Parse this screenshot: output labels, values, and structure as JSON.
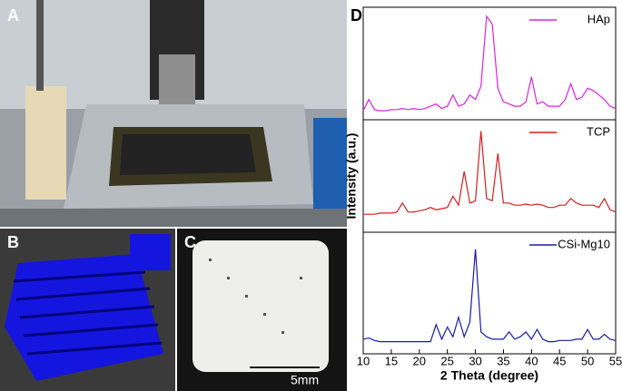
{
  "panel_labels": [
    "A",
    "B",
    "C",
    "D"
  ],
  "scale_bar": "5mm",
  "chart_data": [
    {
      "type": "line",
      "xlim": [
        10,
        55
      ],
      "ylim": [
        0,
        100
      ],
      "legend": "upper right",
      "x": [
        10,
        11,
        12,
        13,
        14,
        15,
        16,
        17,
        18,
        19,
        20,
        21,
        22,
        23,
        24,
        25,
        26,
        27,
        28,
        29,
        30,
        31,
        32,
        33,
        34,
        35,
        36,
        37,
        38,
        39,
        40,
        41,
        42,
        43,
        44,
        45,
        46,
        47,
        48,
        49,
        50,
        51,
        52,
        53,
        54,
        55
      ],
      "series": [
        {
          "name": "HAp",
          "color": "#dd22dd",
          "values": [
            8,
            18,
            9,
            8,
            8,
            9,
            9,
            10,
            9,
            10,
            9,
            10,
            12,
            14,
            10,
            12,
            22,
            12,
            14,
            22,
            18,
            30,
            92,
            85,
            28,
            16,
            14,
            12,
            12,
            16,
            38,
            14,
            16,
            12,
            12,
            12,
            18,
            32,
            18,
            20,
            28,
            26,
            22,
            18,
            12,
            10
          ]
        }
      ]
    },
    {
      "type": "line",
      "xlim": [
        10,
        55
      ],
      "ylim": [
        0,
        100
      ],
      "legend": "upper right",
      "ylabel": "Intensity (a.u.)",
      "x": [
        10,
        11,
        12,
        13,
        14,
        15,
        16,
        17,
        18,
        19,
        20,
        21,
        22,
        23,
        24,
        25,
        26,
        27,
        28,
        29,
        30,
        31,
        32,
        33,
        34,
        35,
        36,
        37,
        38,
        39,
        40,
        41,
        42,
        43,
        44,
        45,
        46,
        47,
        48,
        49,
        50,
        51,
        52,
        53,
        54,
        55
      ],
      "series": [
        {
          "name": "TCP",
          "color": "#d42020",
          "values": [
            16,
            16,
            16,
            17,
            17,
            17,
            18,
            26,
            18,
            18,
            19,
            20,
            22,
            20,
            21,
            22,
            32,
            24,
            54,
            26,
            28,
            90,
            30,
            28,
            70,
            26,
            26,
            24,
            24,
            25,
            24,
            25,
            24,
            22,
            22,
            24,
            24,
            30,
            26,
            24,
            24,
            24,
            22,
            30,
            20,
            18
          ]
        }
      ]
    },
    {
      "type": "line",
      "xlim": [
        10,
        55
      ],
      "ylim": [
        0,
        100
      ],
      "legend": "upper right",
      "xlabel": "2 Theta (degree)",
      "xticks": [
        10,
        15,
        20,
        25,
        30,
        35,
        40,
        45,
        50,
        55
      ],
      "x": [
        10,
        11,
        12,
        13,
        14,
        15,
        16,
        17,
        18,
        19,
        20,
        21,
        22,
        23,
        24,
        25,
        26,
        27,
        28,
        29,
        30,
        31,
        32,
        33,
        34,
        35,
        36,
        37,
        38,
        39,
        40,
        41,
        42,
        43,
        44,
        45,
        46,
        47,
        48,
        49,
        50,
        51,
        52,
        53,
        54,
        55
      ],
      "series": [
        {
          "name": "CSi-Mg10",
          "color": "#1a1aa8",
          "values": [
            12,
            13,
            11,
            10,
            10,
            10,
            10,
            10,
            10,
            10,
            10,
            10,
            10,
            24,
            12,
            22,
            14,
            30,
            14,
            26,
            86,
            18,
            14,
            12,
            12,
            12,
            18,
            12,
            14,
            18,
            12,
            20,
            12,
            10,
            10,
            11,
            11,
            11,
            12,
            12,
            20,
            12,
            12,
            16,
            12,
            11
          ]
        }
      ]
    }
  ]
}
